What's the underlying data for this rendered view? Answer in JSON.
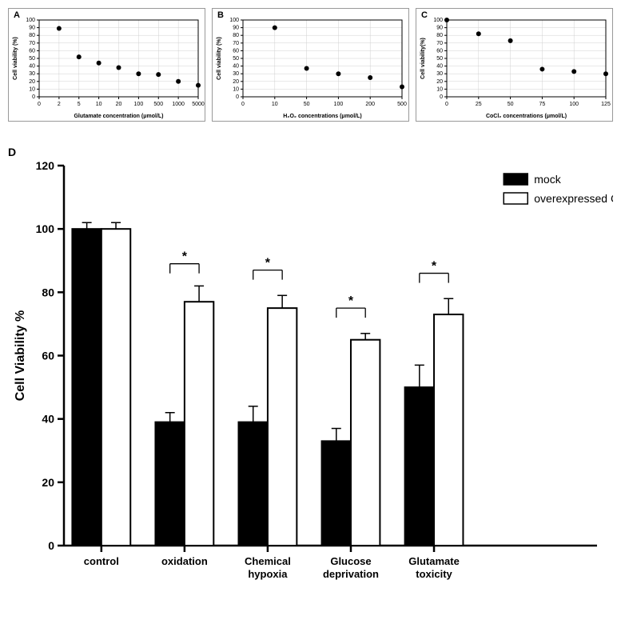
{
  "panelA": {
    "label": "A",
    "type": "scatter",
    "xlabel": "Glutamate concentration (μmol/L)",
    "ylabel": "Cell viability (%)",
    "xtick_labels": [
      "0",
      "2",
      "5",
      "10",
      "20",
      "100",
      "500",
      "1000",
      "5000"
    ],
    "ytick_labels": [
      "0",
      "10",
      "20",
      "30",
      "40",
      "50",
      "60",
      "70",
      "80",
      "90",
      "100"
    ],
    "ylim": [
      0,
      100
    ],
    "points": [
      {
        "xi": 1,
        "y": 89
      },
      {
        "xi": 2,
        "y": 52
      },
      {
        "xi": 3,
        "y": 44
      },
      {
        "xi": 4,
        "y": 38
      },
      {
        "xi": 5,
        "y": 30
      },
      {
        "xi": 6,
        "y": 29
      },
      {
        "xi": 7,
        "y": 20
      },
      {
        "xi": 8,
        "y": 15
      }
    ],
    "colors": {
      "marker": "#000000",
      "grid": "#d0d0d0",
      "axis": "#000000",
      "text": "#000000",
      "bg": "#ffffff"
    },
    "marker_size": 3,
    "font_size": 7
  },
  "panelB": {
    "label": "B",
    "type": "scatter",
    "xlabel": "H₂O₂ concentrations (μmol/L)",
    "ylabel": "Cell viability (%)",
    "xtick_labels": [
      "0",
      "10",
      "50",
      "100",
      "200",
      "500"
    ],
    "ytick_labels": [
      "0",
      "10",
      "20",
      "30",
      "40",
      "50",
      "60",
      "70",
      "80",
      "90",
      "100"
    ],
    "ylim": [
      0,
      100
    ],
    "points": [
      {
        "xi": 1,
        "y": 90
      },
      {
        "xi": 2,
        "y": 37
      },
      {
        "xi": 3,
        "y": 30
      },
      {
        "xi": 4,
        "y": 25
      },
      {
        "xi": 5,
        "y": 13
      }
    ],
    "colors": {
      "marker": "#000000",
      "grid": "#d0d0d0",
      "axis": "#000000",
      "text": "#000000",
      "bg": "#ffffff"
    },
    "marker_size": 3,
    "font_size": 7
  },
  "panelC": {
    "label": "C",
    "type": "scatter",
    "xlabel": "CoCl₂ concentrations (μmol/L)",
    "ylabel": "Cell viability(%)",
    "xtick_labels": [
      "0",
      "25",
      "50",
      "75",
      "100",
      "125"
    ],
    "ytick_labels": [
      "0",
      "10",
      "20",
      "30",
      "40",
      "50",
      "60",
      "70",
      "80",
      "90",
      "100"
    ],
    "ylim": [
      0,
      100
    ],
    "points": [
      {
        "xi": 0,
        "y": 100
      },
      {
        "xi": 1,
        "y": 82
      },
      {
        "xi": 2,
        "y": 73
      },
      {
        "xi": 3,
        "y": 36
      },
      {
        "xi": 4,
        "y": 33
      },
      {
        "xi": 5,
        "y": 30
      }
    ],
    "colors": {
      "marker": "#000000",
      "grid": "#d0d0d0",
      "axis": "#000000",
      "text": "#000000",
      "bg": "#ffffff"
    },
    "marker_size": 3,
    "font_size": 7
  },
  "panelD": {
    "label": "D",
    "type": "bar",
    "ylabel": "Cell Viability %",
    "groups": [
      "control",
      "oxidation",
      "Chemical hypoxia",
      "Glucose deprivation",
      "Glutamate toxicity"
    ],
    "series": [
      {
        "name": "mock",
        "color": "#000000",
        "values": [
          100,
          39,
          39,
          33,
          50
        ],
        "err": [
          2,
          3,
          5,
          4,
          7
        ]
      },
      {
        "name": "overexpressed CIRP",
        "color": "#ffffff",
        "values": [
          100,
          77,
          75,
          65,
          73
        ],
        "err": [
          2,
          5,
          4,
          2,
          5
        ]
      }
    ],
    "sig": [
      {
        "g": 1,
        "y": 89,
        "label": "*"
      },
      {
        "g": 2,
        "y": 87,
        "label": "*"
      },
      {
        "g": 3,
        "y": 75,
        "label": "*"
      },
      {
        "g": 4,
        "y": 86,
        "label": "*"
      }
    ],
    "ylim": [
      0,
      120
    ],
    "ytick_step": 20,
    "yticks": [
      0,
      20,
      40,
      60,
      80,
      100,
      120
    ],
    "colors": {
      "axis": "#000000",
      "text": "#000000",
      "bg": "#ffffff",
      "bar_stroke": "#000000"
    },
    "bar_width": 0.35,
    "font_size_axis": 16,
    "font_size_tick": 14,
    "font_size_group": 13,
    "font_size_legend": 14,
    "axis_line_width": 2.5
  }
}
